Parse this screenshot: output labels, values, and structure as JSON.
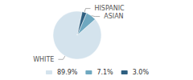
{
  "chart_data": {
    "type": "pie",
    "categories": [
      "WHITE",
      "ASIAN",
      "HISPANIC"
    ],
    "values": [
      89.9,
      7.1,
      3.0
    ],
    "value_labels": [
      "89.9%",
      "7.1%",
      "3.0%"
    ],
    "colors": [
      "#d4e3ed",
      "#6fa8c0",
      "#2e5f80"
    ],
    "legend": "bottom"
  }
}
